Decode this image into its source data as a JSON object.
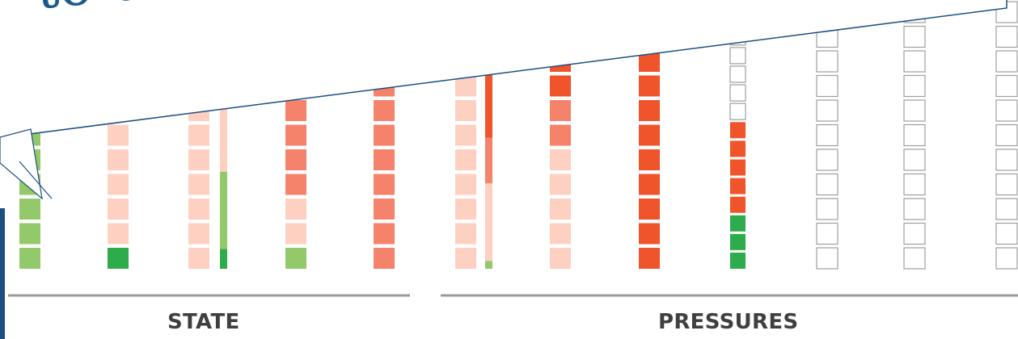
{
  "headline": "to data related t",
  "groups": [
    {
      "label": "STATE"
    },
    {
      "label": "PRESSURES"
    }
  ],
  "colors": {
    "empty_fill": "#ffffff",
    "empty_stroke": "#9e9e9e",
    "light_green": "#93c96a",
    "dark_green": "#2eab4a",
    "light_salmon": "#fdd0c2",
    "salmon": "#f5826b",
    "red_orange": "#f0542b",
    "axis": "#9a9a9a",
    "callout_stroke": "#1c4e80"
  },
  "chart_data": {
    "type": "stacked-block-columns",
    "groups": [
      "STATE",
      "PRESSURES"
    ],
    "columns": [
      {
        "group": "STATE",
        "blocks": [
          "light_green",
          "light_green",
          "light_green",
          "light_green",
          "light_green",
          "light_green",
          "light_green",
          "light_green",
          "light_green",
          "light_green"
        ]
      },
      {
        "group": "STATE",
        "blocks": [
          "dark_green",
          "light_salmon",
          "light_salmon",
          "light_salmon",
          "light_salmon",
          "light_salmon",
          "light_salmon"
        ]
      },
      {
        "group": "STATE",
        "blocks": [
          "light_salmon",
          "light_salmon",
          "light_salmon",
          "light_salmon",
          "light_salmon",
          "light_salmon",
          "light_salmon"
        ]
      },
      {
        "group": "STATE",
        "bar": [
          {
            "color": "dark_green",
            "fraction": 0.12
          },
          {
            "color": "light_green",
            "fraction": 0.47
          },
          {
            "color": "light_salmon",
            "fraction": 0.41
          }
        ]
      },
      {
        "group": "STATE",
        "blocks": [
          "light_green",
          "light_salmon",
          "light_salmon",
          "salmon",
          "salmon",
          "salmon",
          "salmon",
          "salmon"
        ]
      },
      {
        "group": "STATE",
        "blocks": [
          "salmon",
          "salmon",
          "salmon",
          "salmon",
          "salmon",
          "salmon",
          "salmon",
          "salmon"
        ]
      },
      {
        "group": "PRESSURES",
        "blocks": [
          "light_salmon",
          "light_salmon",
          "light_salmon",
          "light_salmon",
          "light_salmon",
          "light_salmon",
          "light_salmon",
          "light_salmon"
        ]
      },
      {
        "group": "PRESSURES",
        "bar": [
          {
            "color": "light_green",
            "fraction": 0.04
          },
          {
            "color": "light_salmon",
            "fraction": 0.39
          },
          {
            "color": "salmon",
            "fraction": 0.23
          },
          {
            "color": "red_orange",
            "fraction": 0.34
          }
        ]
      },
      {
        "group": "PRESSURES",
        "blocks": [
          "light_salmon",
          "light_salmon",
          "light_salmon",
          "light_salmon",
          "light_salmon",
          "salmon",
          "salmon",
          "red_orange",
          "red_orange"
        ]
      },
      {
        "group": "PRESSURES",
        "blocks": [
          "red_orange",
          "red_orange",
          "red_orange",
          "red_orange",
          "red_orange",
          "red_orange",
          "red_orange",
          "red_orange",
          "red_orange"
        ]
      },
      {
        "group": "PRESSURES",
        "blocks": [
          "dark_green",
          "dark_green",
          "dark_green",
          "red_orange",
          "red_orange",
          "red_orange",
          "red_orange",
          "red_orange",
          "empty",
          "empty",
          "empty",
          "empty",
          "empty",
          "empty",
          "empty",
          "empty"
        ]
      },
      {
        "group": "PRESSURES",
        "blocks": [
          "empty",
          "empty",
          "empty",
          "empty",
          "empty",
          "empty",
          "empty",
          "empty",
          "empty",
          "empty",
          "empty",
          "empty",
          "empty"
        ]
      },
      {
        "group": "PRESSURES",
        "blocks": [
          "empty",
          "empty",
          "empty",
          "empty",
          "empty",
          "empty",
          "empty",
          "empty",
          "empty",
          "empty",
          "empty",
          "empty",
          "empty",
          "empty"
        ]
      },
      {
        "group": "PRESSURES",
        "blocks": [
          "empty",
          "empty",
          "empty",
          "empty",
          "empty",
          "empty",
          "empty",
          "empty",
          "empty",
          "empty",
          "empty",
          "empty",
          "empty",
          "empty"
        ]
      }
    ]
  }
}
